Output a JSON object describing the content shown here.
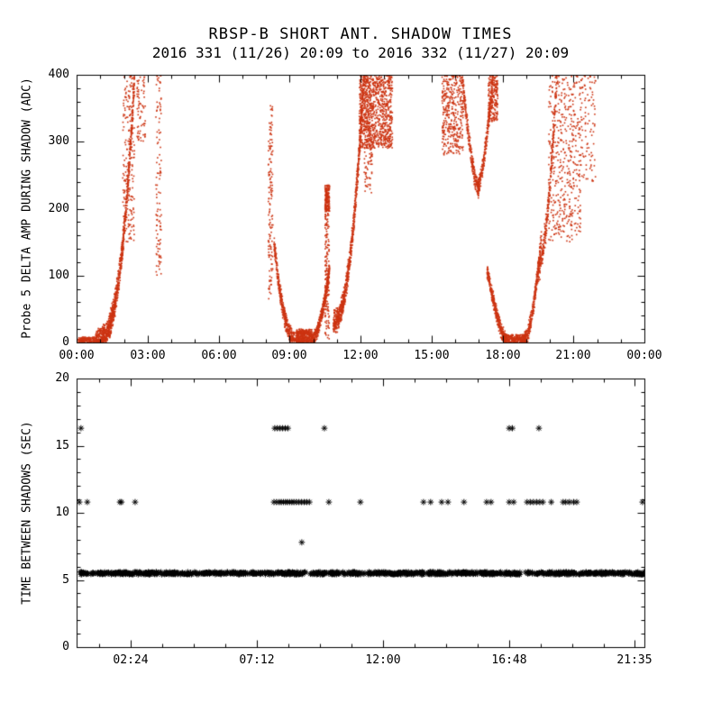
{
  "page": {
    "background": "#ffffff"
  },
  "title": {
    "line1": "RBSP-B SHORT ANT. SHADOW TIMES",
    "line2": "2016 331 (11/26) 20:09 to 2016 332 (11/27) 20:09"
  },
  "chart_data": [
    {
      "type": "scatter",
      "panel": "top",
      "title": "RBSP-B SHORT ANT. SHADOW TIMES",
      "subtitle": "2016 331 (11/26) 20:09 to 2016 332 (11/27) 20:09",
      "ylabel": "Probe 5 DELTA AMP DURING SHADOW (ADC)",
      "xlabel": "",
      "ylim": [
        0,
        400
      ],
      "xlim_hours": [
        0,
        24
      ],
      "y_ticks": [
        0,
        100,
        200,
        300,
        400
      ],
      "y_minor_step": 20,
      "x_ticks": [
        {
          "hour": 0,
          "label": "00:00"
        },
        {
          "hour": 3,
          "label": "03:00"
        },
        {
          "hour": 6,
          "label": "06:00"
        },
        {
          "hour": 9,
          "label": "09:00"
        },
        {
          "hour": 12,
          "label": "12:00"
        },
        {
          "hour": 15,
          "label": "15:00"
        },
        {
          "hour": 18,
          "label": "18:00"
        },
        {
          "hour": 21,
          "label": "21:00"
        },
        {
          "hour": 24,
          "label": "00:00"
        }
      ],
      "x_minor_step_hours": 1,
      "marker": "dot",
      "color": "#cc3311",
      "grid": false,
      "legend": "none",
      "clusters": [
        {
          "shape": "flat",
          "t": [
            0.05,
            0.85
          ],
          "v": [
            0,
            8
          ],
          "n": 150
        },
        {
          "shape": "rise",
          "t": [
            0.8,
            2.45
          ],
          "v": [
            2,
            400
          ],
          "n": 1100,
          "p": 2.8,
          "s": 22
        },
        {
          "shape": "col",
          "t": [
            1.95,
            2.45
          ],
          "v": [
            150,
            400
          ],
          "n": 200
        },
        {
          "shape": "col",
          "t": [
            2.55,
            2.9
          ],
          "v": [
            300,
            400
          ],
          "n": 70
        },
        {
          "shape": "col",
          "t": [
            3.35,
            3.6
          ],
          "v": [
            100,
            400
          ],
          "n": 110
        },
        {
          "shape": "col",
          "t": [
            8.1,
            8.3
          ],
          "v": [
            60,
            360
          ],
          "n": 140
        },
        {
          "shape": "fall",
          "t": [
            8.35,
            9.35
          ],
          "v": [
            150,
            2
          ],
          "n": 450,
          "p": 2.4,
          "s": 16
        },
        {
          "shape": "flat",
          "t": [
            9.3,
            9.95
          ],
          "v": [
            0,
            20
          ],
          "n": 320
        },
        {
          "shape": "rise",
          "t": [
            9.9,
            10.7
          ],
          "v": [
            2,
            110
          ],
          "n": 450,
          "p": 1.8,
          "s": 12
        },
        {
          "shape": "col",
          "t": [
            10.5,
            10.68
          ],
          "v": [
            5,
            235
          ],
          "n": 200
        },
        {
          "shape": "flat",
          "t": [
            10.5,
            10.7
          ],
          "v": [
            195,
            235
          ],
          "n": 150
        },
        {
          "shape": "rise",
          "t": [
            10.85,
            12.15
          ],
          "v": [
            30,
            400
          ],
          "n": 800,
          "p": 2.2,
          "s": 20
        },
        {
          "shape": "col",
          "t": [
            11.95,
            13.35
          ],
          "v": [
            290,
            400
          ],
          "n": 900
        },
        {
          "shape": "col",
          "t": [
            12.15,
            12.5
          ],
          "v": [
            220,
            400
          ],
          "n": 150
        },
        {
          "shape": "col",
          "t": [
            15.45,
            16.35
          ],
          "v": [
            280,
            400
          ],
          "n": 380
        },
        {
          "shape": "fall",
          "t": [
            16.3,
            17.0
          ],
          "v": [
            400,
            230
          ],
          "n": 260,
          "p": 1.6,
          "s": 16
        },
        {
          "shape": "rise",
          "t": [
            16.95,
            17.6
          ],
          "v": [
            235,
            400
          ],
          "n": 260,
          "p": 1.6,
          "s": 16
        },
        {
          "shape": "col",
          "t": [
            17.4,
            17.8
          ],
          "v": [
            330,
            400
          ],
          "n": 200
        },
        {
          "shape": "fall",
          "t": [
            17.35,
            18.15
          ],
          "v": [
            110,
            3
          ],
          "n": 380,
          "p": 1.4,
          "s": 14
        },
        {
          "shape": "flat",
          "t": [
            18.05,
            19.0
          ],
          "v": [
            0,
            12
          ],
          "n": 280
        },
        {
          "shape": "rise",
          "t": [
            18.85,
            19.65
          ],
          "v": [
            2,
            160
          ],
          "n": 350,
          "p": 2.0,
          "s": 14
        },
        {
          "shape": "rise",
          "t": [
            19.5,
            20.3
          ],
          "v": [
            110,
            400
          ],
          "n": 300,
          "p": 1.8,
          "s": 24
        },
        {
          "shape": "col",
          "t": [
            19.95,
            21.3
          ],
          "v": [
            150,
            400
          ],
          "n": 450
        },
        {
          "shape": "col",
          "t": [
            21.3,
            21.95
          ],
          "v": [
            240,
            400
          ],
          "n": 100
        }
      ]
    },
    {
      "type": "scatter",
      "panel": "bottom",
      "ylabel": "TIME BETWEEN SHADOWS (SEC)",
      "xlabel": "",
      "ylim": [
        0,
        20
      ],
      "xlim_hours": [
        0.343,
        21.943
      ],
      "y_ticks": [
        0,
        5,
        10,
        15,
        20
      ],
      "y_minor_step": 1,
      "x_ticks": [
        {
          "hour": 2.4,
          "label": "02:24"
        },
        {
          "hour": 7.2,
          "label": "07:12"
        },
        {
          "hour": 12.0,
          "label": "12:00"
        },
        {
          "hour": 16.8,
          "label": "16:48"
        },
        {
          "hour": 21.583,
          "label": "21:35"
        }
      ],
      "x_minor_step_hours": 1.2,
      "marker": "asterisk",
      "color": "#000000",
      "grid": false,
      "legend": "none",
      "band": {
        "value": 5.5,
        "jitter": 0.1,
        "t_range": [
          0.4,
          21.94
        ],
        "gaps": [
          [
            9.05,
            9.22
          ],
          [
            17.24,
            17.41
          ]
        ],
        "n": 950
      },
      "points": [
        {
          "value": 10.8,
          "t": [
            0.45,
            0.75,
            1.99,
            2.05,
            2.57,
            7.85,
            7.95,
            8.05,
            8.13,
            8.21,
            8.29,
            8.37,
            8.45,
            8.53,
            8.61,
            8.7,
            8.8,
            8.9,
            9.0,
            9.1,
            9.2,
            9.94,
            11.14,
            13.54,
            13.81,
            14.23,
            14.47,
            15.08,
            15.94,
            16.11,
            16.8,
            16.97,
            17.48,
            17.6,
            17.72,
            17.84,
            17.96,
            18.08,
            18.4,
            18.85,
            18.95,
            19.09,
            19.25,
            19.37,
            21.87
          ]
        },
        {
          "value": 16.3,
          "t": [
            0.51,
            7.88,
            7.98,
            8.08,
            8.18,
            8.28,
            8.38,
            9.77,
            16.8,
            16.92,
            17.93
          ]
        },
        {
          "value": 7.8,
          "t": [
            8.91
          ]
        }
      ]
    }
  ]
}
